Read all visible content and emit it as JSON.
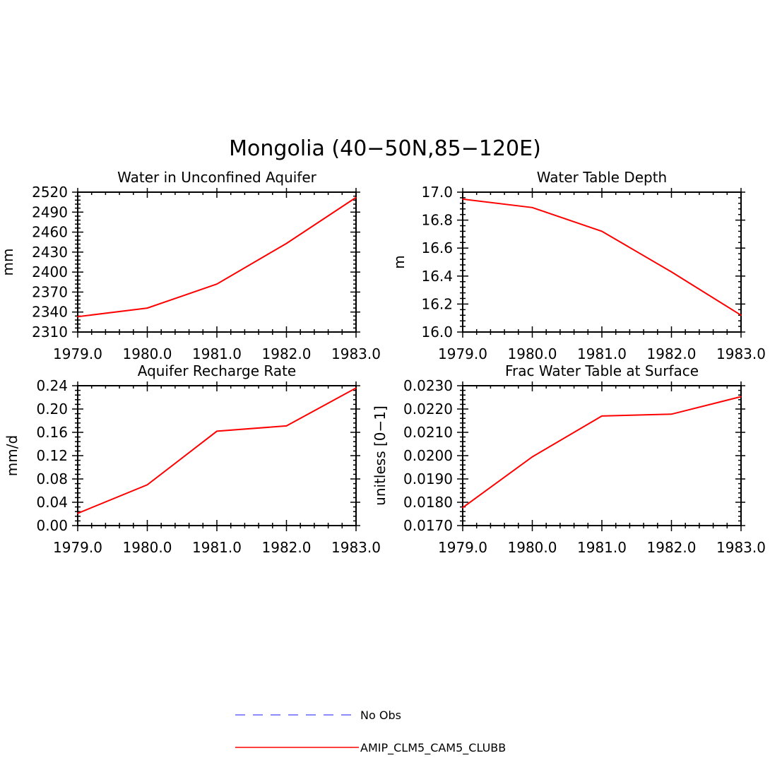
{
  "figure": {
    "title": "Mongolia (40−50N,85−120E)"
  },
  "legend": {
    "items": [
      {
        "label": "No Obs",
        "color": "#6666ff",
        "dashed": true
      },
      {
        "label": "AMIP_CLM5_CAM5_CLUBB",
        "color": "#ff0000",
        "dashed": false
      }
    ]
  },
  "chart_data": [
    {
      "type": "line",
      "title": "Water in Unconfined Aquifer",
      "xlabel": "",
      "ylabel": "mm",
      "x": [
        1979,
        1980,
        1981,
        1982,
        1983
      ],
      "xlim": [
        1979,
        1983
      ],
      "xticks": [
        "1979.0",
        "1980.0",
        "1981.0",
        "1982.0",
        "1983.0"
      ],
      "ylim": [
        2310,
        2520
      ],
      "yticks": [
        "2310",
        "2340",
        "2370",
        "2400",
        "2430",
        "2460",
        "2490",
        "2520"
      ],
      "series": [
        {
          "name": "AMIP_CLM5_CAM5_CLUBB",
          "color": "#ff0000",
          "values": [
            2333,
            2346,
            2382,
            2443,
            2512
          ]
        }
      ]
    },
    {
      "type": "line",
      "title": "Water Table Depth",
      "xlabel": "",
      "ylabel": "m",
      "x": [
        1979,
        1980,
        1981,
        1982,
        1983
      ],
      "xlim": [
        1979,
        1983
      ],
      "xticks": [
        "1979.0",
        "1980.0",
        "1981.0",
        "1982.0",
        "1983.0"
      ],
      "ylim": [
        16.0,
        17.0
      ],
      "yticks": [
        "16.0",
        "16.2",
        "16.4",
        "16.6",
        "16.8",
        "17.0"
      ],
      "series": [
        {
          "name": "AMIP_CLM5_CAM5_CLUBB",
          "color": "#ff0000",
          "values": [
            16.95,
            16.89,
            16.72,
            16.43,
            16.12
          ]
        }
      ]
    },
    {
      "type": "line",
      "title": "Aquifer Recharge Rate",
      "xlabel": "",
      "ylabel": "mm/d",
      "x": [
        1979,
        1980,
        1981,
        1982,
        1983
      ],
      "xlim": [
        1979,
        1983
      ],
      "xticks": [
        "1979.0",
        "1980.0",
        "1981.0",
        "1982.0",
        "1983.0"
      ],
      "ylim": [
        0.0,
        0.24
      ],
      "yticks": [
        "0.00",
        "0.04",
        "0.08",
        "0.12",
        "0.16",
        "0.20",
        "0.24"
      ],
      "series": [
        {
          "name": "AMIP_CLM5_CAM5_CLUBB",
          "color": "#ff0000",
          "values": [
            0.021,
            0.07,
            0.162,
            0.171,
            0.236
          ]
        }
      ]
    },
    {
      "type": "line",
      "title": "Frac Water Table at Surface",
      "xlabel": "",
      "ylabel": "unitless [0−1]",
      "x": [
        1979,
        1980,
        1981,
        1982,
        1983
      ],
      "xlim": [
        1979,
        1983
      ],
      "xticks": [
        "1979.0",
        "1980.0",
        "1981.0",
        "1982.0",
        "1983.0"
      ],
      "ylim": [
        0.017,
        0.023
      ],
      "yticks": [
        "0.0170",
        "0.0180",
        "0.0190",
        "0.0200",
        "0.0210",
        "0.0220",
        "0.0230"
      ],
      "series": [
        {
          "name": "AMIP_CLM5_CAM5_CLUBB",
          "color": "#ff0000",
          "values": [
            0.01777,
            0.01995,
            0.0217,
            0.02178,
            0.02253
          ]
        }
      ]
    }
  ]
}
